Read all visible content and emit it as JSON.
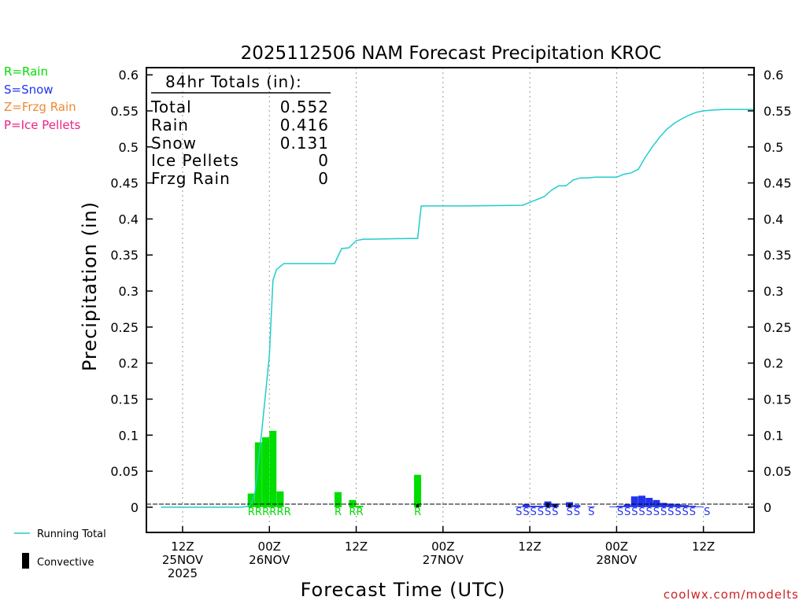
{
  "colors": {
    "rain": "#00dd00",
    "snow": "#2233ee",
    "frzg_rain": "#ee8833",
    "ice_pellets": "#ee2288",
    "running_total": "#22cccc",
    "convective": "#000000",
    "credit": "#cc2222"
  },
  "chart_data": {
    "type": "bar",
    "title": "2025112506 NAM Forecast Precipitation KROC",
    "xlabel": "Forecast Time (UTC)",
    "ylabel": "Precipitation (in)",
    "ylim": [
      -0.035,
      0.61
    ],
    "xlim": [
      -2,
      82
    ],
    "yticks": [
      0,
      0.05,
      0.1,
      0.15,
      0.2,
      0.25,
      0.3,
      0.35,
      0.4,
      0.45,
      0.5,
      0.55,
      0.6
    ],
    "ytick_labels": [
      "0",
      "0.05",
      "0.1",
      "0.15",
      "0.2",
      "0.25",
      "0.3",
      "0.35",
      "0.4",
      "0.45",
      "0.5",
      "0.55",
      "0.6"
    ],
    "xticks": [
      {
        "hour": 3,
        "lines": [
          "12Z",
          "25NOV",
          "2025"
        ]
      },
      {
        "hour": 15,
        "lines": [
          "00Z",
          "26NOV"
        ]
      },
      {
        "hour": 27,
        "lines": [
          "12Z"
        ]
      },
      {
        "hour": 39,
        "lines": [
          "00Z",
          "27NOV"
        ]
      },
      {
        "hour": 51,
        "lines": [
          "12Z"
        ]
      },
      {
        "hour": 63,
        "lines": [
          "00Z",
          "28NOV"
        ]
      },
      {
        "hour": 75,
        "lines": [
          "12Z"
        ]
      }
    ],
    "legend": [
      {
        "label": "R=Rain",
        "color_key": "rain"
      },
      {
        "label": "S=Snow",
        "color_key": "snow"
      },
      {
        "label": "Z=Frzg Rain",
        "color_key": "frzg_rain"
      },
      {
        "label": "P=Ice Pellets",
        "color_key": "ice_pellets"
      }
    ],
    "bottom_legend": {
      "running_total": "Running Total",
      "convective": "Convective"
    },
    "totals": {
      "header": "84hr Totals (in):",
      "rows": [
        {
          "label": "Total",
          "value": "0.552"
        },
        {
          "label": "Rain",
          "value": "0.416"
        },
        {
          "label": "Snow",
          "value": "0.131"
        },
        {
          "label": "Ice Pellets",
          "value": "0"
        },
        {
          "label": "Frzg Rain",
          "value": "0"
        }
      ]
    },
    "bars": [
      {
        "hour": 13,
        "value": 0.019,
        "type": "rain"
      },
      {
        "hour": 14,
        "value": 0.09,
        "type": "rain"
      },
      {
        "hour": 15,
        "value": 0.097,
        "type": "rain"
      },
      {
        "hour": 16,
        "value": 0.106,
        "type": "rain"
      },
      {
        "hour": 17,
        "value": 0.022,
        "type": "rain"
      },
      {
        "hour": 25,
        "value": 0.021,
        "type": "rain"
      },
      {
        "hour": 27,
        "value": 0.01,
        "type": "rain"
      },
      {
        "hour": 28,
        "value": 0.002,
        "type": "rain"
      },
      {
        "hour": 36,
        "value": 0.045,
        "type": "rain",
        "conv": 0.004
      },
      {
        "hour": 50,
        "value": 0.001,
        "type": "snow"
      },
      {
        "hour": 51,
        "value": 0.004,
        "type": "snow"
      },
      {
        "hour": 52,
        "value": 0.002,
        "type": "snow"
      },
      {
        "hour": 53,
        "value": 0.002,
        "type": "snow"
      },
      {
        "hour": 54,
        "value": 0.008,
        "type": "snow",
        "conv": 0.006
      },
      {
        "hour": 55,
        "value": 0.005,
        "type": "snow",
        "conv": 0.004
      },
      {
        "hour": 57,
        "value": 0.007,
        "type": "snow",
        "conv": 0.005
      },
      {
        "hour": 58,
        "value": 0.003,
        "type": "snow"
      },
      {
        "hour": 60,
        "value": 0.001,
        "type": "snow"
      },
      {
        "hour": 63,
        "value": 0.001,
        "type": "snow"
      },
      {
        "hour": 64,
        "value": 0.002,
        "type": "snow"
      },
      {
        "hour": 65,
        "value": 0.004,
        "type": "snow"
      },
      {
        "hour": 66,
        "value": 0.015,
        "type": "snow"
      },
      {
        "hour": 67,
        "value": 0.016,
        "type": "snow"
      },
      {
        "hour": 68,
        "value": 0.013,
        "type": "snow"
      },
      {
        "hour": 69,
        "value": 0.01,
        "type": "snow"
      },
      {
        "hour": 70,
        "value": 0.006,
        "type": "snow"
      },
      {
        "hour": 71,
        "value": 0.005,
        "type": "snow"
      },
      {
        "hour": 72,
        "value": 0.004,
        "type": "snow"
      },
      {
        "hour": 73,
        "value": 0.003,
        "type": "snow"
      },
      {
        "hour": 74,
        "value": 0.002,
        "type": "snow"
      },
      {
        "hour": 75,
        "value": 0.001,
        "type": "snow"
      }
    ],
    "type_codes": [
      {
        "hour": 13,
        "code": "R",
        "type": "rain"
      },
      {
        "hour": 14,
        "code": "R",
        "type": "rain"
      },
      {
        "hour": 15,
        "code": "R",
        "type": "rain"
      },
      {
        "hour": 16,
        "code": "R",
        "type": "rain"
      },
      {
        "hour": 17,
        "code": "R",
        "type": "rain"
      },
      {
        "hour": 18,
        "code": "R",
        "type": "rain"
      },
      {
        "hour": 25,
        "code": "R",
        "type": "rain"
      },
      {
        "hour": 27,
        "code": "R",
        "type": "rain"
      },
      {
        "hour": 28,
        "code": "R",
        "type": "rain"
      },
      {
        "hour": 36,
        "code": "R",
        "type": "rain"
      },
      {
        "hour": 50,
        "code": "S",
        "type": "snow"
      },
      {
        "hour": 51,
        "code": "S",
        "type": "snow"
      },
      {
        "hour": 52,
        "code": "S",
        "type": "snow"
      },
      {
        "hour": 53,
        "code": "S",
        "type": "snow"
      },
      {
        "hour": 54,
        "code": "S",
        "type": "snow"
      },
      {
        "hour": 55,
        "code": "S",
        "type": "snow"
      },
      {
        "hour": 57,
        "code": "S",
        "type": "snow"
      },
      {
        "hour": 58,
        "code": "S",
        "type": "snow"
      },
      {
        "hour": 60,
        "code": "S",
        "type": "snow"
      },
      {
        "hour": 64,
        "code": "S",
        "type": "snow"
      },
      {
        "hour": 65,
        "code": "S",
        "type": "snow"
      },
      {
        "hour": 66,
        "code": "S",
        "type": "snow"
      },
      {
        "hour": 67,
        "code": "S",
        "type": "snow"
      },
      {
        "hour": 68,
        "code": "S",
        "type": "snow"
      },
      {
        "hour": 69,
        "code": "S",
        "type": "snow"
      },
      {
        "hour": 70,
        "code": "S",
        "type": "snow"
      },
      {
        "hour": 71,
        "code": "S",
        "type": "snow"
      },
      {
        "hour": 72,
        "code": "S",
        "type": "snow"
      },
      {
        "hour": 73,
        "code": "S",
        "type": "snow"
      },
      {
        "hour": 74,
        "code": "S",
        "type": "snow"
      },
      {
        "hour": 76,
        "code": "S",
        "type": "snow"
      }
    ],
    "running_total": {
      "hours": [
        0,
        11,
        12,
        12.5,
        13,
        14,
        15,
        15.5,
        16,
        17,
        18,
        24,
        25,
        26,
        27,
        28,
        29,
        34.5,
        35.5,
        36,
        42,
        50,
        51,
        52,
        53,
        54,
        55,
        56,
        57,
        58,
        59,
        60,
        61,
        62,
        63,
        64,
        65,
        66,
        67,
        68,
        69,
        70,
        71,
        72,
        73,
        74,
        75,
        76,
        78,
        80,
        82
      ],
      "values": [
        0,
        0,
        0.001,
        0.005,
        0.02,
        0.11,
        0.21,
        0.315,
        0.33,
        0.338,
        0.338,
        0.338,
        0.359,
        0.36,
        0.37,
        0.372,
        0.372,
        0.373,
        0.373,
        0.418,
        0.418,
        0.419,
        0.423,
        0.427,
        0.431,
        0.44,
        0.446,
        0.446,
        0.454,
        0.457,
        0.457,
        0.458,
        0.458,
        0.458,
        0.458,
        0.462,
        0.464,
        0.469,
        0.486,
        0.501,
        0.514,
        0.525,
        0.533,
        0.539,
        0.544,
        0.548,
        0.55,
        0.551,
        0.552,
        0.552,
        0.552
      ]
    }
  },
  "credit": "coolwx.com/modelts"
}
